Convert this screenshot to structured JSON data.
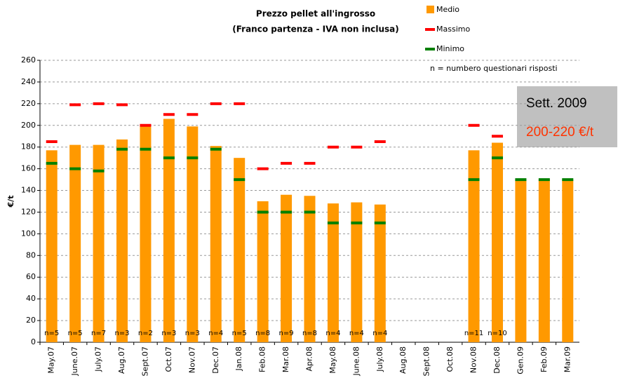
{
  "chart_data": {
    "type": "bar",
    "title": "Prezzo pellet all'ingrosso",
    "subtitle": "(Franco partenza - IVA non inclusa)",
    "y_label": "€/t",
    "categories": [
      "May.07",
      "June.07",
      "July.07",
      "Aug.07",
      "Sept.07",
      "Oct.07",
      "Nov.07",
      "Dec.07",
      "Jan.08",
      "Feb.08",
      "Mar.08",
      "Apr.08",
      "May.08",
      "June.08",
      "July.08",
      "Aug.08",
      "Sept.08",
      "Oct.08",
      "Nov.08",
      "Dec.08",
      "Gen.09",
      "Feb.09",
      "Mar.09"
    ],
    "series": [
      {
        "name": "Medio",
        "color": "#ff9900",
        "mark": "bar",
        "values": [
          177,
          182,
          182,
          187,
          199,
          206,
          199,
          181,
          170,
          130,
          136,
          135,
          128,
          129,
          127,
          null,
          null,
          null,
          177,
          184,
          150,
          150,
          150
        ]
      },
      {
        "name": "Massimo",
        "color": "#ff0000",
        "mark": "dash",
        "values": [
          185,
          219,
          220,
          219,
          200,
          210,
          210,
          220,
          220,
          160,
          165,
          165,
          180,
          180,
          185,
          null,
          null,
          null,
          200,
          190,
          null,
          null,
          null
        ]
      },
      {
        "name": "Minimo",
        "color": "#008000",
        "mark": "dash",
        "values": [
          165,
          160,
          158,
          178,
          178,
          170,
          170,
          178,
          150,
          120,
          120,
          120,
          110,
          110,
          110,
          null,
          null,
          null,
          150,
          170,
          150,
          150,
          150
        ]
      }
    ],
    "n_labels": [
      "n=5",
      "n=5",
      "n=7",
      "n=3",
      "n=2",
      "n=3",
      "n=3",
      "n=4",
      "n=5",
      "n=8",
      "n=9",
      "n=8",
      "n=4",
      "n=4",
      "n=4",
      null,
      null,
      null,
      "n=11",
      "n=10",
      null,
      null,
      null
    ],
    "legend_note": "n = numbero questionari risposti",
    "annotation": {
      "line1": "Sett. 2009",
      "line2": "200-220 €/t"
    },
    "ylim": [
      0,
      260
    ],
    "yticks": [
      0,
      20,
      40,
      60,
      80,
      100,
      120,
      140,
      160,
      180,
      200,
      220,
      240,
      260
    ],
    "grid": true
  }
}
